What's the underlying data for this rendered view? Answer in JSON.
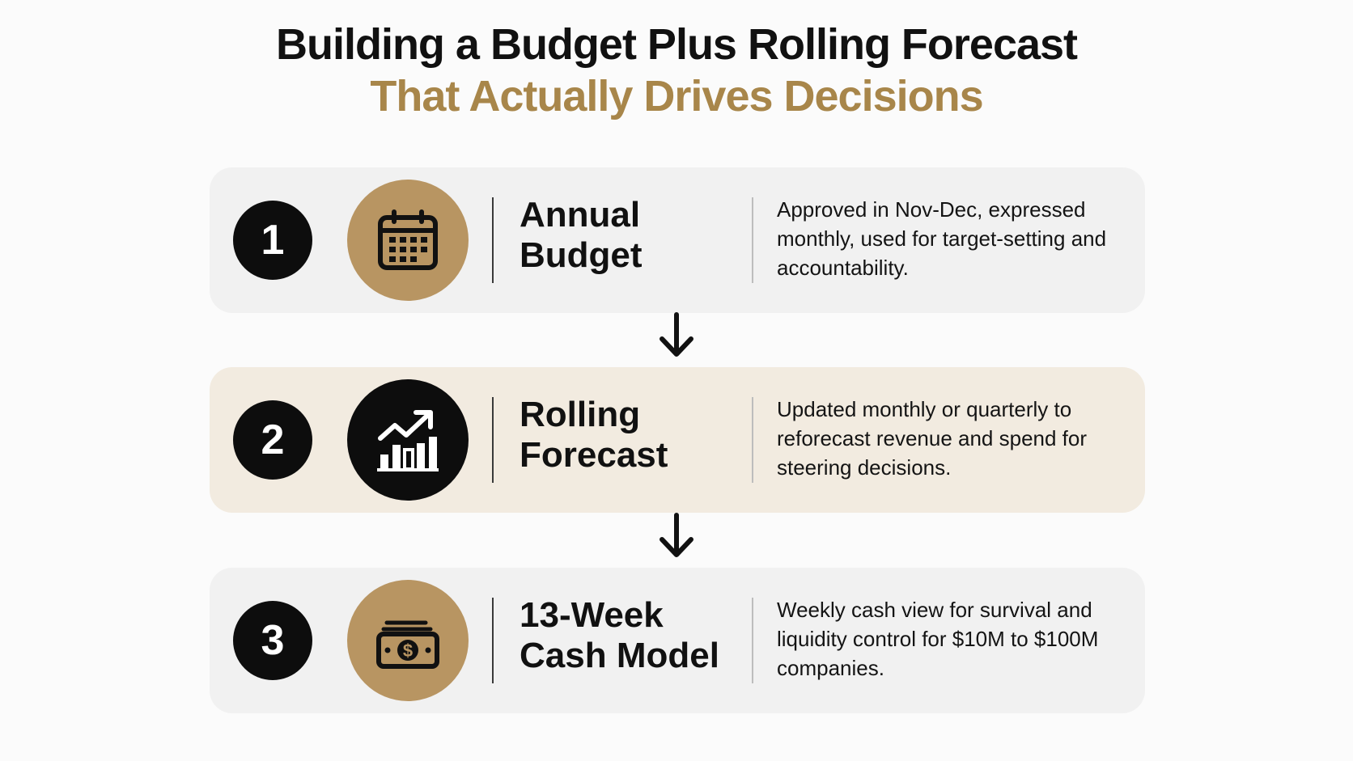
{
  "title": {
    "line1": "Building a Budget Plus Rolling Forecast",
    "line2": "That Actually Drives Decisions"
  },
  "colors": {
    "accent_gold": "#b89562",
    "title_gold": "#a8864a",
    "card_gray": "#f1f1f1",
    "card_beige": "#f2ebe0",
    "dark": "#0d0d0d"
  },
  "steps": [
    {
      "number": "1",
      "label_line1": "Annual",
      "label_line2": "Budget",
      "icon": "calendar-icon",
      "description": "Approved in Nov-Dec, expressed monthly, used for target-setting and accountability."
    },
    {
      "number": "2",
      "label_line1": "Rolling",
      "label_line2": "Forecast",
      "icon": "growth-chart-icon",
      "description": "Updated monthly or quarterly to reforecast revenue and spend for steering decisions."
    },
    {
      "number": "3",
      "label_line1": "13-Week",
      "label_line2": "Cash Model",
      "icon": "cash-stack-icon",
      "description": "Weekly cash view for survival and liquidity control for $10M to $100M companies."
    }
  ]
}
